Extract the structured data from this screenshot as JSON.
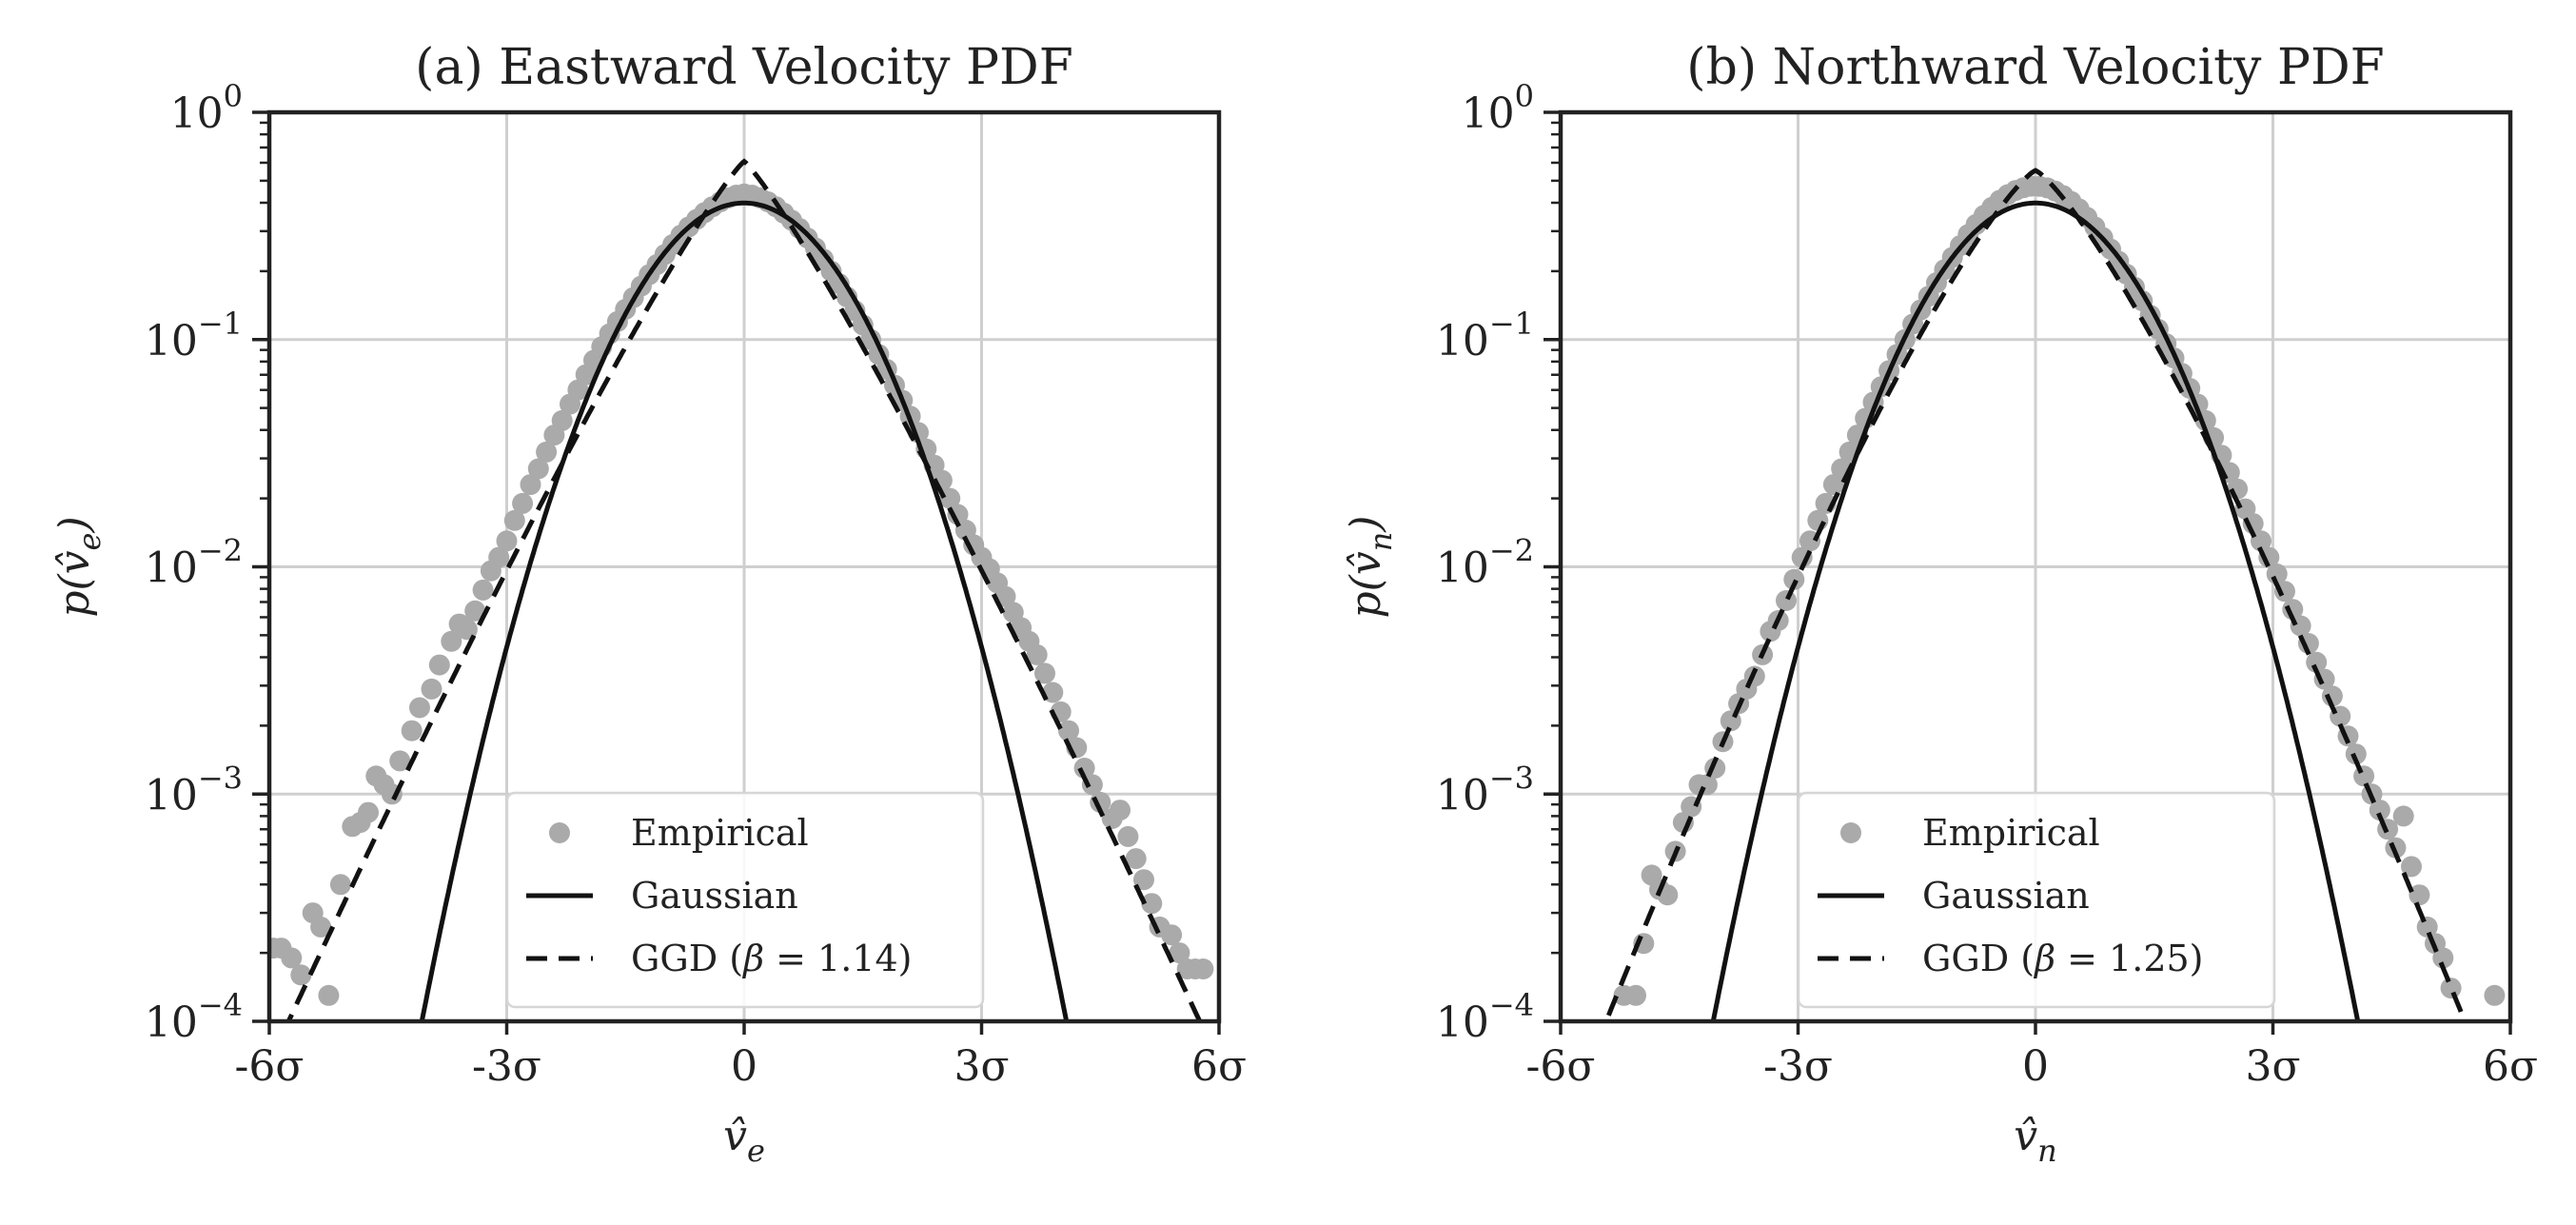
{
  "chart_data": [
    {
      "type": "scatter",
      "id": "a",
      "title": "(a) Eastward Velocity PDF",
      "xlabel": "v̂e",
      "xlabel_base": "v̂",
      "xlabel_sub": "e",
      "ylabel": "p(v̂e)",
      "ylabel_pre": "p(v̂",
      "ylabel_sub": "e",
      "ylabel_post": ")",
      "xlim": [
        -6,
        6
      ],
      "ylim": [
        0.0001,
        1
      ],
      "yscale": "log",
      "grid": true,
      "legend_position": "bottom-center",
      "x_ticks": [
        {
          "value": -6,
          "label": "-6σ"
        },
        {
          "value": -3,
          "label": "-3σ"
        },
        {
          "value": 0,
          "label": "0"
        },
        {
          "value": 3,
          "label": "3σ"
        },
        {
          "value": 6,
          "label": "6σ"
        }
      ],
      "y_ticks": [
        {
          "value": 1,
          "base": "10",
          "exp": "0"
        },
        {
          "value": 0.1,
          "base": "10",
          "exp": "−1"
        },
        {
          "value": 0.01,
          "base": "10",
          "exp": "−2"
        },
        {
          "value": 0.001,
          "base": "10",
          "exp": "−3"
        },
        {
          "value": 0.0001,
          "base": "10",
          "exp": "−4"
        }
      ],
      "series": [
        {
          "name": "Empirical",
          "kind": "scatter",
          "color": "#aaaaaa",
          "points": [
            [
              -5.95,
              0.00021
            ],
            [
              -5.85,
              0.00021
            ],
            [
              -5.72,
              0.00019
            ],
            [
              -5.6,
              0.00016
            ],
            [
              -5.45,
              0.0003
            ],
            [
              -5.35,
              0.00026
            ],
            [
              -5.25,
              0.00013
            ],
            [
              -5.1,
              0.0004
            ],
            [
              -4.95,
              0.00072
            ],
            [
              -4.85,
              0.00075
            ],
            [
              -4.75,
              0.00083
            ],
            [
              -4.65,
              0.0012
            ],
            [
              -4.55,
              0.0011
            ],
            [
              -4.45,
              0.001
            ],
            [
              -4.35,
              0.0014
            ],
            [
              -4.2,
              0.0019
            ],
            [
              -4.1,
              0.0024
            ],
            [
              -3.95,
              0.0029
            ],
            [
              -3.85,
              0.0037
            ],
            [
              -3.7,
              0.0047
            ],
            [
              -3.6,
              0.0056
            ],
            [
              -3.5,
              0.0053
            ],
            [
              -3.4,
              0.0064
            ],
            [
              -3.3,
              0.0079
            ],
            [
              -3.2,
              0.0096
            ],
            [
              -3.1,
              0.011
            ],
            [
              -3.0,
              0.013
            ],
            [
              -2.9,
              0.016
            ],
            [
              -2.8,
              0.019
            ],
            [
              -2.7,
              0.023
            ],
            [
              -2.6,
              0.027
            ],
            [
              -2.5,
              0.032
            ],
            [
              -2.4,
              0.038
            ],
            [
              -2.3,
              0.044
            ],
            [
              -2.2,
              0.052
            ],
            [
              -2.1,
              0.06
            ],
            [
              -2.0,
              0.07
            ],
            [
              -1.9,
              0.081
            ],
            [
              -1.8,
              0.093
            ],
            [
              -1.7,
              0.106
            ],
            [
              -1.6,
              0.12
            ],
            [
              -1.5,
              0.136
            ],
            [
              -1.4,
              0.153
            ],
            [
              -1.3,
              0.172
            ],
            [
              -1.2,
              0.193
            ],
            [
              -1.1,
              0.214
            ],
            [
              -1.0,
              0.237
            ],
            [
              -0.9,
              0.262
            ],
            [
              -0.8,
              0.288
            ],
            [
              -0.7,
              0.313
            ],
            [
              -0.6,
              0.338
            ],
            [
              -0.5,
              0.362
            ],
            [
              -0.4,
              0.384
            ],
            [
              -0.3,
              0.404
            ],
            [
              -0.2,
              0.42
            ],
            [
              -0.1,
              0.432
            ],
            [
              0.0,
              0.437
            ],
            [
              0.1,
              0.432
            ],
            [
              0.2,
              0.42
            ],
            [
              0.3,
              0.404
            ],
            [
              0.4,
              0.384
            ],
            [
              0.5,
              0.36
            ],
            [
              0.6,
              0.335
            ],
            [
              0.7,
              0.308
            ],
            [
              0.8,
              0.28
            ],
            [
              0.9,
              0.253
            ],
            [
              1.0,
              0.226
            ],
            [
              1.1,
              0.2
            ],
            [
              1.2,
              0.176
            ],
            [
              1.3,
              0.154
            ],
            [
              1.4,
              0.134
            ],
            [
              1.5,
              0.116
            ],
            [
              1.6,
              0.1
            ],
            [
              1.7,
              0.086
            ],
            [
              1.8,
              0.074
            ],
            [
              1.9,
              0.063
            ],
            [
              2.0,
              0.054
            ],
            [
              2.1,
              0.046
            ],
            [
              2.2,
              0.039
            ],
            [
              2.3,
              0.033
            ],
            [
              2.4,
              0.028
            ],
            [
              2.5,
              0.024
            ],
            [
              2.6,
              0.02
            ],
            [
              2.7,
              0.017
            ],
            [
              2.8,
              0.0145
            ],
            [
              2.9,
              0.0125
            ],
            [
              3.0,
              0.011
            ],
            [
              3.1,
              0.0098
            ],
            [
              3.2,
              0.0085
            ],
            [
              3.3,
              0.0074
            ],
            [
              3.4,
              0.0063
            ],
            [
              3.5,
              0.0054
            ],
            [
              3.6,
              0.0047
            ],
            [
              3.7,
              0.0041
            ],
            [
              3.8,
              0.0034
            ],
            [
              3.9,
              0.0028
            ],
            [
              4.0,
              0.0023
            ],
            [
              4.1,
              0.0019
            ],
            [
              4.2,
              0.0016
            ],
            [
              4.3,
              0.0013
            ],
            [
              4.4,
              0.0011
            ],
            [
              4.5,
              0.00092
            ],
            [
              4.65,
              0.00078
            ],
            [
              4.75,
              0.00085
            ],
            [
              4.85,
              0.00065
            ],
            [
              4.95,
              0.00052
            ],
            [
              5.05,
              0.00042
            ],
            [
              5.15,
              0.00033
            ],
            [
              5.25,
              0.00026
            ],
            [
              5.4,
              0.00024
            ],
            [
              5.5,
              0.0002
            ],
            [
              5.6,
              0.00017
            ],
            [
              5.7,
              0.00017
            ],
            [
              5.8,
              0.00017
            ]
          ]
        },
        {
          "name": "Gaussian",
          "kind": "line",
          "dash": "solid",
          "function": "gaussian",
          "color": "#111111"
        },
        {
          "name": "GGD (β = 1.14)",
          "name_pre": "GGD (",
          "name_beta": "β",
          "name_post": " = 1.14)",
          "kind": "line",
          "dash": "dashed",
          "function": "ggd",
          "beta": 1.14,
          "color": "#111111"
        }
      ]
    },
    {
      "type": "scatter",
      "id": "b",
      "title": "(b) Northward Velocity PDF",
      "xlabel": "v̂n",
      "xlabel_base": "v̂",
      "xlabel_sub": "n",
      "ylabel": "p(v̂n)",
      "ylabel_pre": "p(v̂",
      "ylabel_sub": "n",
      "ylabel_post": ")",
      "xlim": [
        -6,
        6
      ],
      "ylim": [
        0.0001,
        1
      ],
      "yscale": "log",
      "grid": true,
      "legend_position": "bottom-center",
      "x_ticks": [
        {
          "value": -6,
          "label": "-6σ"
        },
        {
          "value": -3,
          "label": "-3σ"
        },
        {
          "value": 0,
          "label": "0"
        },
        {
          "value": 3,
          "label": "3σ"
        },
        {
          "value": 6,
          "label": "6σ"
        }
      ],
      "y_ticks": [
        {
          "value": 1,
          "base": "10",
          "exp": "0"
        },
        {
          "value": 0.1,
          "base": "10",
          "exp": "−1"
        },
        {
          "value": 0.01,
          "base": "10",
          "exp": "−2"
        },
        {
          "value": 0.001,
          "base": "10",
          "exp": "−3"
        },
        {
          "value": 0.0001,
          "base": "10",
          "exp": "−4"
        }
      ],
      "series": [
        {
          "name": "Empirical",
          "kind": "scatter",
          "color": "#aaaaaa",
          "points": [
            [
              -5.2,
              0.00013
            ],
            [
              -5.05,
              0.00013
            ],
            [
              -4.95,
              0.00022
            ],
            [
              -4.85,
              0.00044
            ],
            [
              -4.75,
              0.00038
            ],
            [
              -4.65,
              0.00036
            ],
            [
              -4.55,
              0.00056
            ],
            [
              -4.45,
              0.00075
            ],
            [
              -4.35,
              0.00088
            ],
            [
              -4.25,
              0.0011
            ],
            [
              -4.15,
              0.0011
            ],
            [
              -4.05,
              0.0013
            ],
            [
              -3.95,
              0.0017
            ],
            [
              -3.85,
              0.0021
            ],
            [
              -3.75,
              0.0025
            ],
            [
              -3.65,
              0.0029
            ],
            [
              -3.55,
              0.0033
            ],
            [
              -3.45,
              0.0041
            ],
            [
              -3.35,
              0.0052
            ],
            [
              -3.25,
              0.0058
            ],
            [
              -3.15,
              0.0071
            ],
            [
              -3.05,
              0.0088
            ],
            [
              -2.95,
              0.011
            ],
            [
              -2.85,
              0.013
            ],
            [
              -2.75,
              0.016
            ],
            [
              -2.65,
              0.019
            ],
            [
              -2.55,
              0.023
            ],
            [
              -2.45,
              0.027
            ],
            [
              -2.35,
              0.032
            ],
            [
              -2.25,
              0.038
            ],
            [
              -2.15,
              0.045
            ],
            [
              -2.05,
              0.053
            ],
            [
              -1.95,
              0.062
            ],
            [
              -1.85,
              0.073
            ],
            [
              -1.75,
              0.086
            ],
            [
              -1.65,
              0.1
            ],
            [
              -1.55,
              0.117
            ],
            [
              -1.45,
              0.135
            ],
            [
              -1.35,
              0.155
            ],
            [
              -1.25,
              0.178
            ],
            [
              -1.15,
              0.203
            ],
            [
              -1.05,
              0.23
            ],
            [
              -0.95,
              0.259
            ],
            [
              -0.85,
              0.29
            ],
            [
              -0.75,
              0.321
            ],
            [
              -0.65,
              0.352
            ],
            [
              -0.55,
              0.382
            ],
            [
              -0.45,
              0.41
            ],
            [
              -0.35,
              0.434
            ],
            [
              -0.25,
              0.453
            ],
            [
              -0.15,
              0.466
            ],
            [
              -0.05,
              0.473
            ],
            [
              0.05,
              0.472
            ],
            [
              0.15,
              0.465
            ],
            [
              0.25,
              0.45
            ],
            [
              0.35,
              0.43
            ],
            [
              0.45,
              0.405
            ],
            [
              0.55,
              0.376
            ],
            [
              0.65,
              0.345
            ],
            [
              0.75,
              0.313
            ],
            [
              0.85,
              0.281
            ],
            [
              0.95,
              0.25
            ],
            [
              1.05,
              0.221
            ],
            [
              1.15,
              0.194
            ],
            [
              1.25,
              0.17
            ],
            [
              1.35,
              0.148
            ],
            [
              1.45,
              0.128
            ],
            [
              1.55,
              0.111
            ],
            [
              1.65,
              0.096
            ],
            [
              1.75,
              0.083
            ],
            [
              1.85,
              0.071
            ],
            [
              1.95,
              0.061
            ],
            [
              2.05,
              0.052
            ],
            [
              2.15,
              0.044
            ],
            [
              2.25,
              0.037
            ],
            [
              2.35,
              0.031
            ],
            [
              2.45,
              0.026
            ],
            [
              2.55,
              0.022
            ],
            [
              2.65,
              0.018
            ],
            [
              2.75,
              0.0155
            ],
            [
              2.85,
              0.013
            ],
            [
              2.95,
              0.011
            ],
            [
              3.05,
              0.0093
            ],
            [
              3.15,
              0.0078
            ],
            [
              3.25,
              0.0065
            ],
            [
              3.35,
              0.0055
            ],
            [
              3.45,
              0.0046
            ],
            [
              3.55,
              0.0038
            ],
            [
              3.65,
              0.0032
            ],
            [
              3.75,
              0.0027
            ],
            [
              3.85,
              0.0022
            ],
            [
              3.95,
              0.0018
            ],
            [
              4.05,
              0.0015
            ],
            [
              4.15,
              0.0012
            ],
            [
              4.25,
              0.001
            ],
            [
              4.35,
              0.00085
            ],
            [
              4.45,
              0.0007
            ],
            [
              4.55,
              0.00058
            ],
            [
              4.65,
              0.0008
            ],
            [
              4.75,
              0.00048
            ],
            [
              4.85,
              0.00036
            ],
            [
              4.95,
              0.00026
            ],
            [
              5.05,
              0.00022
            ],
            [
              5.15,
              0.00019
            ],
            [
              5.25,
              0.00014
            ],
            [
              5.8,
              0.00013
            ]
          ]
        },
        {
          "name": "Gaussian",
          "kind": "line",
          "dash": "solid",
          "function": "gaussian",
          "color": "#111111"
        },
        {
          "name": "GGD (β = 1.25)",
          "name_pre": "GGD (",
          "name_beta": "β",
          "name_post": " = 1.25)",
          "kind": "line",
          "dash": "dashed",
          "function": "ggd",
          "beta": 1.25,
          "color": "#111111"
        }
      ]
    }
  ]
}
